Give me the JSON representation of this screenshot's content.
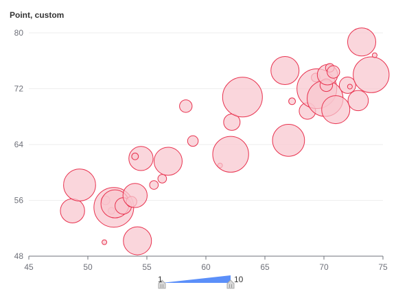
{
  "chart_data": {
    "type": "scatter",
    "title": "Point, custom",
    "xlabel": "",
    "ylabel": "",
    "xlim": [
      45,
      75
    ],
    "ylim": [
      48,
      80
    ],
    "x_ticks": [
      "45",
      "50",
      "55",
      "60",
      "65",
      "70",
      "75"
    ],
    "y_ticks": [
      "48",
      "56",
      "64",
      "72",
      "80"
    ],
    "grid": true,
    "colors": {
      "bubble_fill": "#f8c6cf",
      "bubble_stroke": "#e8304d",
      "axis": "#6e7079",
      "grid": "#eeeeee",
      "visual_map": "#5b8ff9"
    },
    "size_range": [
      1,
      10
    ],
    "visual_map": {
      "min_label": "1",
      "max_label": "10"
    },
    "points": [
      {
        "x": 48.7,
        "y": 54.5,
        "size": 6
      },
      {
        "x": 49.3,
        "y": 58.2,
        "size": 8
      },
      {
        "x": 51.4,
        "y": 50.0,
        "size": 1
      },
      {
        "x": 51.5,
        "y": 56.0,
        "size": 2
      },
      {
        "x": 52.0,
        "y": 54.5,
        "size": 1.5
      },
      {
        "x": 52.2,
        "y": 55.0,
        "size": 10
      },
      {
        "x": 52.3,
        "y": 55.5,
        "size": 7
      },
      {
        "x": 53.0,
        "y": 55.2,
        "size": 4
      },
      {
        "x": 53.7,
        "y": 55.8,
        "size": 2.5
      },
      {
        "x": 54.0,
        "y": 56.7,
        "size": 6
      },
      {
        "x": 54.2,
        "y": 50.2,
        "size": 7
      },
      {
        "x": 54.5,
        "y": 62.0,
        "size": 6
      },
      {
        "x": 54.0,
        "y": 62.3,
        "size": 1.5
      },
      {
        "x": 55.6,
        "y": 58.2,
        "size": 2
      },
      {
        "x": 56.3,
        "y": 59.1,
        "size": 2
      },
      {
        "x": 56.8,
        "y": 61.6,
        "size": 7
      },
      {
        "x": 58.3,
        "y": 69.5,
        "size": 3
      },
      {
        "x": 58.9,
        "y": 64.5,
        "size": 2.5
      },
      {
        "x": 61.2,
        "y": 61.0,
        "size": 1
      },
      {
        "x": 62.1,
        "y": 62.6,
        "size": 9
      },
      {
        "x": 62.2,
        "y": 67.2,
        "size": 4
      },
      {
        "x": 63.1,
        "y": 70.8,
        "size": 10
      },
      {
        "x": 66.7,
        "y": 74.6,
        "size": 7
      },
      {
        "x": 67.0,
        "y": 64.6,
        "size": 8
      },
      {
        "x": 67.3,
        "y": 70.2,
        "size": 1.5
      },
      {
        "x": 68.6,
        "y": 68.8,
        "size": 4
      },
      {
        "x": 69.3,
        "y": 73.6,
        "size": 2
      },
      {
        "x": 69.4,
        "y": 72.0,
        "size": 10
      },
      {
        "x": 70.1,
        "y": 70.6,
        "size": 9
      },
      {
        "x": 70.2,
        "y": 72.5,
        "size": 3
      },
      {
        "x": 70.3,
        "y": 74.0,
        "size": 5
      },
      {
        "x": 70.5,
        "y": 75.0,
        "size": 2
      },
      {
        "x": 70.8,
        "y": 74.4,
        "size": 3
      },
      {
        "x": 71.0,
        "y": 69.0,
        "size": 7
      },
      {
        "x": 72.0,
        "y": 72.5,
        "size": 4
      },
      {
        "x": 72.2,
        "y": 72.3,
        "size": 1
      },
      {
        "x": 72.9,
        "y": 70.3,
        "size": 5
      },
      {
        "x": 73.2,
        "y": 78.7,
        "size": 7
      },
      {
        "x": 74.0,
        "y": 74.0,
        "size": 9
      },
      {
        "x": 74.3,
        "y": 76.8,
        "size": 1
      }
    ]
  }
}
